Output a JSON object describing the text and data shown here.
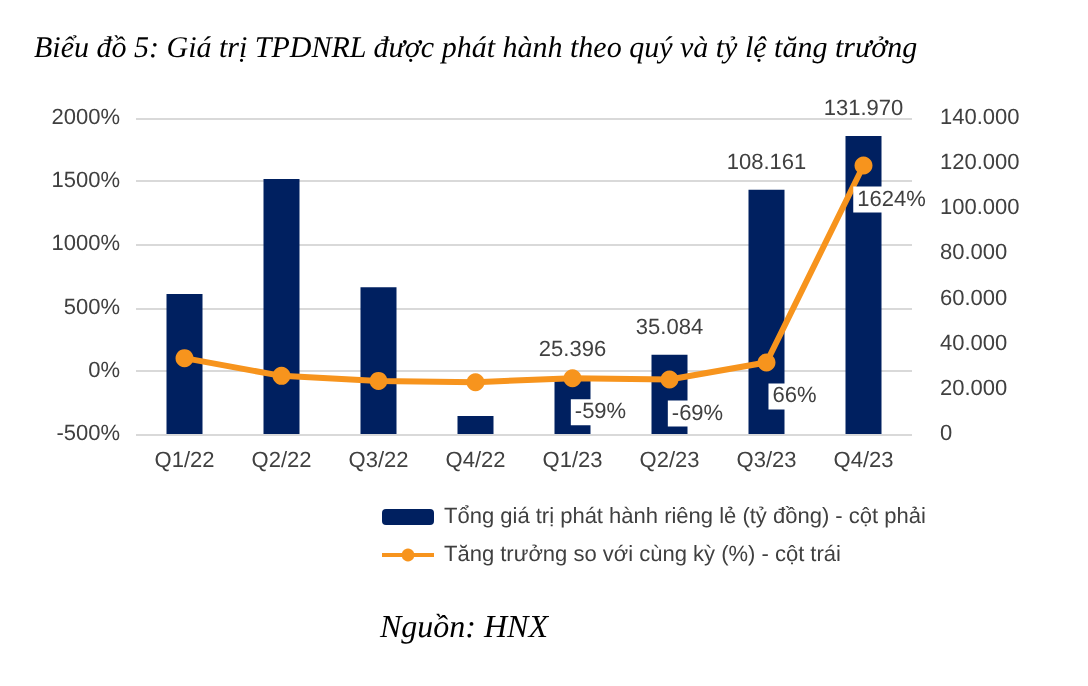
{
  "chart_data": {
    "type": "bar",
    "title": "Biểu đồ 5: Giá trị TPDNRL được phát hành theo quý và tỷ lệ tăng trưởng",
    "categories": [
      "Q1/22",
      "Q2/22",
      "Q3/22",
      "Q4/22",
      "Q1/23",
      "Q2/23",
      "Q3/23",
      "Q4/23"
    ],
    "series": [
      {
        "name": "Tổng giá trị phát hành riêng lẻ (tỷ đồng) - cột phải",
        "axis": "y2",
        "color": "#002060",
        "values": [
          62000,
          113000,
          65000,
          8000,
          25396,
          35084,
          108161,
          131970
        ],
        "value_labels": [
          null,
          null,
          null,
          null,
          "25.396",
          "35.084",
          "108.161",
          "131.970"
        ]
      },
      {
        "name": "Tăng trưởng so với cùng kỳ (%) - cột trái",
        "type": "line",
        "color": "#f7941d",
        "marker": "circle",
        "values": [
          100,
          -40,
          -80,
          -90,
          -59,
          -69,
          66,
          1624
        ],
        "value_labels": [
          null,
          null,
          null,
          null,
          "-59%",
          "-69%",
          "66%",
          "1624%"
        ]
      }
    ],
    "ylim": [
      -500,
      2000
    ],
    "yticks": [
      {
        "value": -500,
        "label": "-500%"
      },
      {
        "value": 0,
        "label": "0%"
      },
      {
        "value": 500,
        "label": "500%"
      },
      {
        "value": 1000,
        "label": "1000%"
      },
      {
        "value": 1500,
        "label": "1500%"
      },
      {
        "value": 2000,
        "label": "2000%"
      }
    ],
    "y2lim": [
      0,
      140000
    ],
    "y2ticks": [
      0,
      {
        "value": 20000,
        "label": "20.000"
      },
      {
        "value": 40000,
        "label": "40.000"
      },
      {
        "value": 60000,
        "label": "60.000"
      },
      {
        "value": 80000,
        "label": "80.000"
      },
      {
        "value": 100000,
        "label": "100.000"
      },
      {
        "value": 120000,
        "label": "120.000"
      },
      {
        "value": 140000,
        "label": "140.000"
      }
    ],
    "grid": "y",
    "legend": "bottom",
    "annotations": [
      "Nguồn: HNX"
    ]
  }
}
